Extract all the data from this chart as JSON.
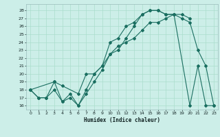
{
  "xlabel": "Humidex (Indice chaleur)",
  "bg_color": "#cceee8",
  "grid_color": "#aaddcc",
  "line_color": "#1a6e60",
  "xlim": [
    -0.5,
    23.5
  ],
  "ylim": [
    15.5,
    28.8
  ],
  "yticks": [
    16,
    17,
    18,
    19,
    20,
    21,
    22,
    23,
    24,
    25,
    26,
    27,
    28
  ],
  "xticks": [
    0,
    1,
    2,
    3,
    4,
    5,
    6,
    7,
    8,
    9,
    10,
    11,
    12,
    13,
    14,
    15,
    16,
    17,
    18,
    19,
    20,
    21,
    22,
    23
  ],
  "line1_x": [
    0,
    1,
    2,
    3,
    4,
    5,
    6,
    7,
    8,
    9,
    10,
    11,
    12,
    13,
    14,
    15,
    16,
    17,
    18,
    20,
    21,
    22,
    23
  ],
  "line1_y": [
    18,
    17,
    17,
    19,
    16.5,
    17.5,
    16,
    18,
    20,
    21,
    24,
    24.5,
    26,
    26.5,
    27.5,
    28,
    28,
    27.5,
    27.5,
    16,
    21,
    16,
    16
  ],
  "line2_x": [
    0,
    3,
    4,
    6,
    7,
    8,
    9,
    10,
    11,
    12,
    13,
    14,
    15,
    16,
    17,
    18,
    19,
    20
  ],
  "line2_y": [
    18,
    19,
    18.5,
    17.5,
    20,
    20,
    21,
    22.5,
    23,
    24.5,
    26,
    27.5,
    28,
    28,
    27.5,
    27.5,
    27.5,
    27
  ],
  "line3_x": [
    0,
    1,
    2,
    3,
    4,
    5,
    6,
    7,
    8,
    9,
    10,
    11,
    12,
    13,
    14,
    15,
    16,
    17,
    18,
    19,
    20,
    21,
    22,
    23
  ],
  "line3_y": [
    18,
    17,
    17,
    18,
    16.5,
    17,
    16,
    17.5,
    19,
    20.5,
    22.5,
    23.5,
    24,
    24.5,
    25.5,
    26.5,
    26.5,
    27,
    27.5,
    27,
    26.5,
    23,
    21,
    16
  ]
}
